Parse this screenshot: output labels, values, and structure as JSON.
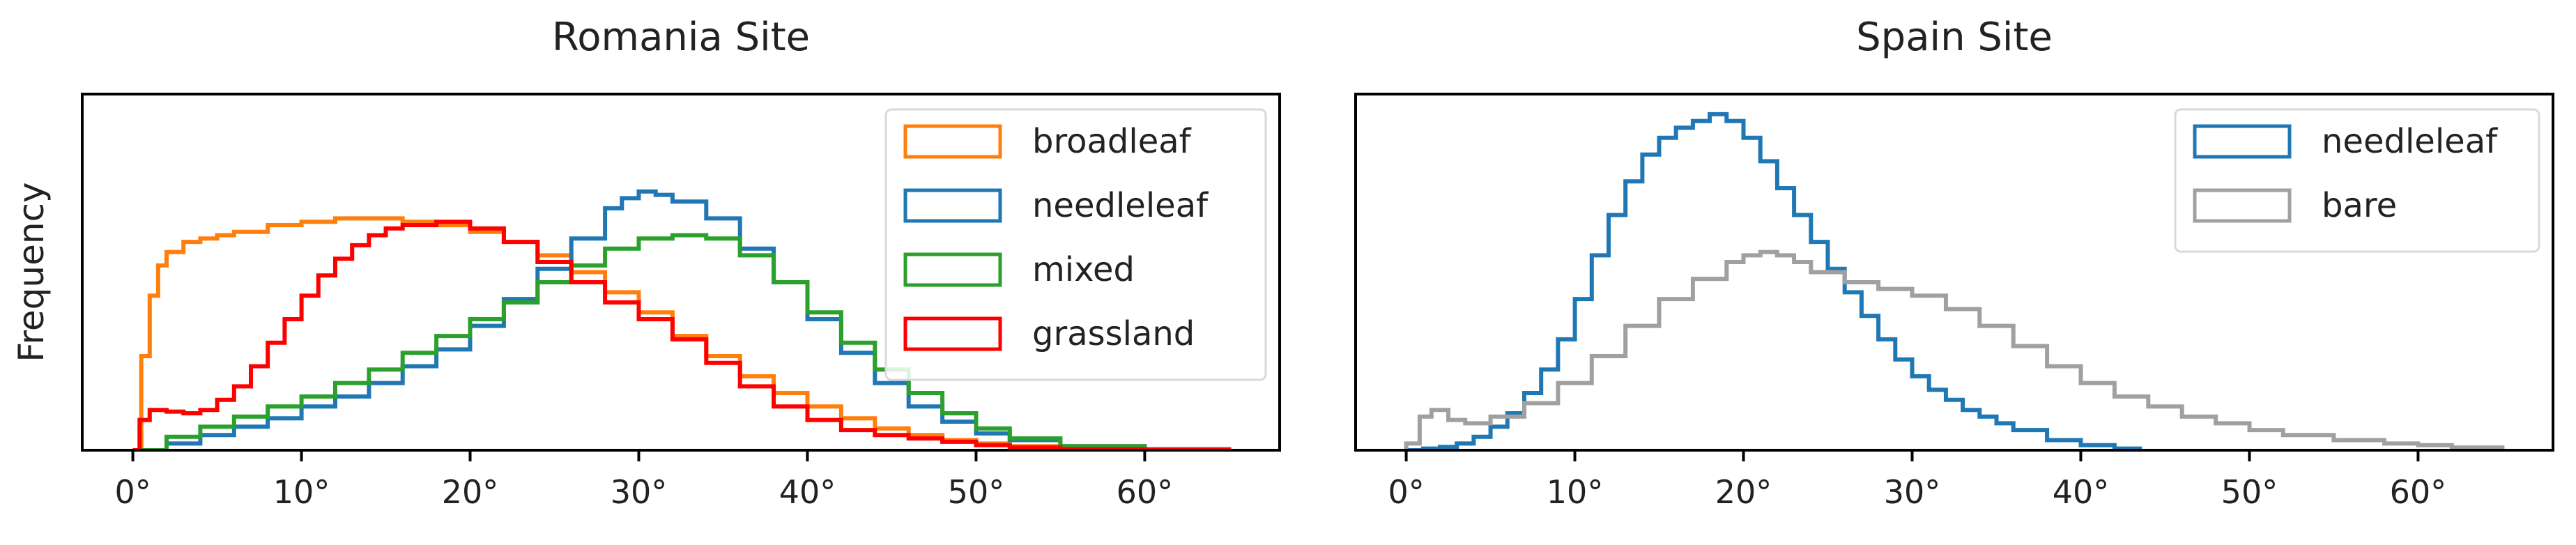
{
  "chart_data": [
    {
      "type": "histogram",
      "title": "Romania Site",
      "ylabel": "Frequency",
      "xlabel": "",
      "x_ticks": [
        0,
        10,
        20,
        30,
        40,
        50,
        60
      ],
      "x_tick_labels": [
        "0°",
        "10°",
        "20°",
        "30°",
        "40°",
        "50°",
        "60°"
      ],
      "xlim": [
        -3,
        68
      ],
      "ylim": [
        0,
        1.06
      ],
      "y_ticks_shown": false,
      "grid": false,
      "legend": {
        "location": "upper-right",
        "entries": [
          "broadleaf",
          "needleleaf",
          "mixed",
          "grassland"
        ]
      },
      "series": [
        {
          "name": "broadleaf",
          "color": "#ff7f0e",
          "x": [
            0,
            0.5,
            1,
            1.5,
            2,
            3,
            4,
            5,
            6,
            8,
            10,
            12,
            14,
            16,
            18,
            20,
            22,
            24,
            26,
            28,
            30,
            32,
            34,
            36,
            38,
            40,
            42,
            44,
            46,
            48,
            50,
            52,
            55,
            60,
            65
          ],
          "y": [
            0.0,
            0.28,
            0.46,
            0.55,
            0.59,
            0.62,
            0.63,
            0.64,
            0.65,
            0.67,
            0.68,
            0.69,
            0.69,
            0.68,
            0.67,
            0.65,
            0.62,
            0.58,
            0.53,
            0.47,
            0.41,
            0.34,
            0.28,
            0.22,
            0.17,
            0.13,
            0.095,
            0.065,
            0.045,
            0.03,
            0.02,
            0.012,
            0.006,
            0.002,
            0.0
          ]
        },
        {
          "name": "needleleaf",
          "color": "#1f77b4",
          "x": [
            0,
            2,
            4,
            6,
            8,
            10,
            12,
            14,
            16,
            18,
            20,
            22,
            24,
            26,
            28,
            29,
            30,
            31,
            32,
            34,
            36,
            38,
            40,
            42,
            44,
            46,
            48,
            50,
            52,
            55,
            60,
            65
          ],
          "y": [
            0.0,
            0.02,
            0.045,
            0.07,
            0.095,
            0.13,
            0.16,
            0.2,
            0.25,
            0.3,
            0.37,
            0.45,
            0.54,
            0.63,
            0.72,
            0.75,
            0.77,
            0.76,
            0.74,
            0.69,
            0.6,
            0.5,
            0.39,
            0.29,
            0.2,
            0.13,
            0.085,
            0.05,
            0.03,
            0.012,
            0.003,
            0.0
          ]
        },
        {
          "name": "mixed",
          "color": "#2ca02c",
          "x": [
            0,
            2,
            4,
            6,
            8,
            10,
            12,
            14,
            16,
            18,
            20,
            22,
            24,
            26,
            28,
            30,
            32,
            33,
            34,
            36,
            38,
            40,
            42,
            44,
            46,
            48,
            50,
            52,
            55,
            60,
            65
          ],
          "y": [
            0.0,
            0.04,
            0.07,
            0.1,
            0.13,
            0.16,
            0.2,
            0.24,
            0.29,
            0.34,
            0.39,
            0.44,
            0.5,
            0.55,
            0.6,
            0.63,
            0.64,
            0.64,
            0.63,
            0.58,
            0.5,
            0.41,
            0.32,
            0.24,
            0.17,
            0.11,
            0.065,
            0.035,
            0.012,
            0.003,
            0.0
          ]
        },
        {
          "name": "grassland",
          "color": "#ff0000",
          "x": [
            0,
            0.4,
            1,
            2,
            3,
            4,
            5,
            6,
            7,
            8,
            9,
            10,
            11,
            12,
            13,
            14,
            15,
            16,
            18,
            20,
            22,
            24,
            26,
            28,
            30,
            32,
            34,
            36,
            38,
            40,
            42,
            44,
            46,
            48,
            50,
            52,
            55,
            60,
            65
          ],
          "y": [
            0.0,
            0.09,
            0.12,
            0.115,
            0.11,
            0.12,
            0.15,
            0.19,
            0.25,
            0.32,
            0.39,
            0.46,
            0.52,
            0.57,
            0.61,
            0.64,
            0.66,
            0.67,
            0.68,
            0.66,
            0.62,
            0.56,
            0.5,
            0.44,
            0.39,
            0.33,
            0.26,
            0.19,
            0.13,
            0.09,
            0.06,
            0.045,
            0.035,
            0.025,
            0.015,
            0.008,
            0.003,
            0.001,
            0.0
          ]
        }
      ]
    },
    {
      "type": "histogram",
      "title": "Spain Site",
      "ylabel": "",
      "xlabel": "",
      "x_ticks": [
        0,
        10,
        20,
        30,
        40,
        50,
        60
      ],
      "x_tick_labels": [
        "0°",
        "10°",
        "20°",
        "30°",
        "40°",
        "50°",
        "60°"
      ],
      "xlim": [
        -3,
        68
      ],
      "ylim": [
        0,
        1.06
      ],
      "y_ticks_shown": false,
      "grid": false,
      "legend": {
        "location": "upper-right",
        "entries": [
          "needleleaf",
          "bare"
        ]
      },
      "series": [
        {
          "name": "needleleaf",
          "color": "#1f77b4",
          "x": [
            0,
            1,
            2,
            3,
            4,
            5,
            6,
            7,
            8,
            9,
            10,
            11,
            12,
            13,
            14,
            15,
            16,
            17,
            18,
            19,
            20,
            21,
            22,
            23,
            24,
            25,
            26,
            27,
            28,
            29,
            30,
            31,
            32,
            33,
            34,
            35,
            36,
            38,
            40,
            42,
            43.5
          ],
          "y": [
            0.0,
            0.005,
            0.01,
            0.02,
            0.04,
            0.07,
            0.11,
            0.17,
            0.24,
            0.33,
            0.45,
            0.58,
            0.7,
            0.8,
            0.88,
            0.93,
            0.96,
            0.98,
            1.0,
            0.98,
            0.93,
            0.86,
            0.78,
            0.7,
            0.62,
            0.54,
            0.47,
            0.4,
            0.33,
            0.27,
            0.22,
            0.18,
            0.15,
            0.12,
            0.1,
            0.08,
            0.06,
            0.03,
            0.015,
            0.005,
            0.0
          ]
        },
        {
          "name": "bare",
          "color": "#a0a0a0",
          "x": [
            0,
            0.8,
            1.5,
            2.5,
            3.5,
            5,
            7,
            9,
            11,
            13,
            15,
            17,
            19,
            20,
            21,
            22,
            23,
            24,
            26,
            28,
            30,
            32,
            34,
            36,
            38,
            40,
            42,
            44,
            46,
            48,
            50,
            52,
            55,
            58,
            60,
            62,
            65
          ],
          "y": [
            0.02,
            0.1,
            0.12,
            0.09,
            0.08,
            0.1,
            0.14,
            0.2,
            0.28,
            0.37,
            0.45,
            0.51,
            0.56,
            0.58,
            0.59,
            0.58,
            0.56,
            0.53,
            0.5,
            0.48,
            0.46,
            0.42,
            0.37,
            0.31,
            0.25,
            0.2,
            0.16,
            0.13,
            0.1,
            0.08,
            0.06,
            0.045,
            0.03,
            0.02,
            0.015,
            0.008,
            0.002
          ]
        }
      ]
    }
  ]
}
